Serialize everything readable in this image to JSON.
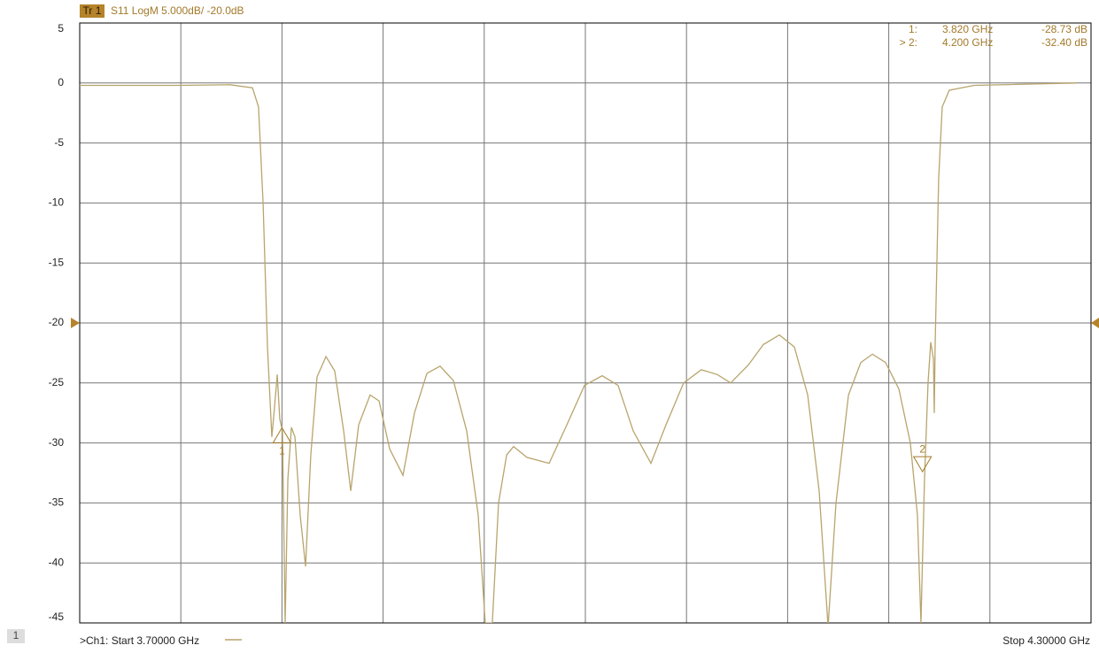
{
  "chart_data": {
    "type": "line",
    "trace_badge": "Tr 1",
    "trace_label": "S11 LogM 5.000dB/ -20.0dB",
    "color": "#b8a46c",
    "xlim": [
      3.7,
      4.3
    ],
    "xticks": [
      3.7,
      3.76,
      3.82,
      3.88,
      3.94,
      4.0,
      4.06,
      4.12,
      4.18,
      4.24,
      4.3
    ],
    "ylim": [
      -45,
      5
    ],
    "yticks": [
      5,
      0,
      -5,
      -10,
      -15,
      -20,
      -25,
      -30,
      -35,
      -40,
      -45
    ],
    "grid": true,
    "reference": -20,
    "x": [
      3.7,
      3.7578,
      3.7893,
      3.8025,
      3.8061,
      3.8088,
      3.8114,
      3.814,
      3.8156,
      3.8172,
      3.8187,
      3.8203,
      3.8219,
      3.8235,
      3.8256,
      3.8277,
      3.8308,
      3.834,
      3.8371,
      3.8408,
      3.8461,
      3.8513,
      3.8566,
      3.8608,
      3.8655,
      3.8723,
      3.8776,
      3.8839,
      3.8918,
      3.8986,
      3.906,
      3.9138,
      3.9217,
      3.9296,
      3.9364,
      3.9406,
      3.9448,
      3.9485,
      3.9533,
      3.9574,
      3.9653,
      3.9785,
      3.989,
      3.9995,
      4.01,
      4.0194,
      4.0284,
      4.0389,
      4.0478,
      4.0583,
      4.0688,
      4.0783,
      4.0862,
      4.0967,
      4.1056,
      4.1151,
      4.124,
      4.1319,
      4.1387,
      4.144,
      4.1487,
      4.1561,
      4.1634,
      4.1703,
      4.1781,
      4.186,
      4.1928,
      4.197,
      4.1991,
      4.2012,
      4.2033,
      4.2049,
      4.2065,
      4.207,
      4.2075,
      4.2096,
      4.2117,
      4.2159,
      4.2306,
      4.2911
    ],
    "values": [
      -0.2,
      -0.2,
      -0.15,
      -0.4,
      -2,
      -10,
      -22,
      -29.5,
      -27,
      -24.3,
      -28,
      -29,
      -45,
      -33,
      -28.7,
      -29.5,
      -36,
      -40.3,
      -31,
      -24.5,
      -22.8,
      -24,
      -29,
      -34,
      -28.5,
      -26,
      -26.5,
      -30.5,
      -32.7,
      -27.5,
      -24.2,
      -23.6,
      -24.8,
      -29,
      -36,
      -45,
      -45,
      -35,
      -31,
      -30.3,
      -31.2,
      -31.7,
      -28.5,
      -25.2,
      -24.4,
      -25.2,
      -29,
      -31.7,
      -28.5,
      -25,
      -23.9,
      -24.3,
      -25,
      -23.5,
      -21.8,
      -21,
      -22,
      -26,
      -34,
      -45.3,
      -35,
      -26,
      -23.3,
      -22.6,
      -23.3,
      -25.5,
      -30,
      -36,
      -45,
      -33,
      -25,
      -21.6,
      -23,
      -27.5,
      -22,
      -8,
      -2,
      -0.6,
      -0.2,
      0
    ],
    "markers": [
      {
        "label": "1:",
        "tag": "1",
        "x": 3.82,
        "x_label": "3.820 GHz",
        "value": -28.73,
        "value_label": "-28.73 dB"
      },
      {
        "label": "> 2:",
        "tag": "2",
        "x": 4.2,
        "x_label": "4.200 GHz",
        "value": -32.4,
        "value_label": "-32.40 dB"
      }
    ],
    "channel": "1",
    "start_label": ">Ch1:  Start  3.70000 GHz",
    "stop_label": "Stop  4.30000 GHz"
  }
}
